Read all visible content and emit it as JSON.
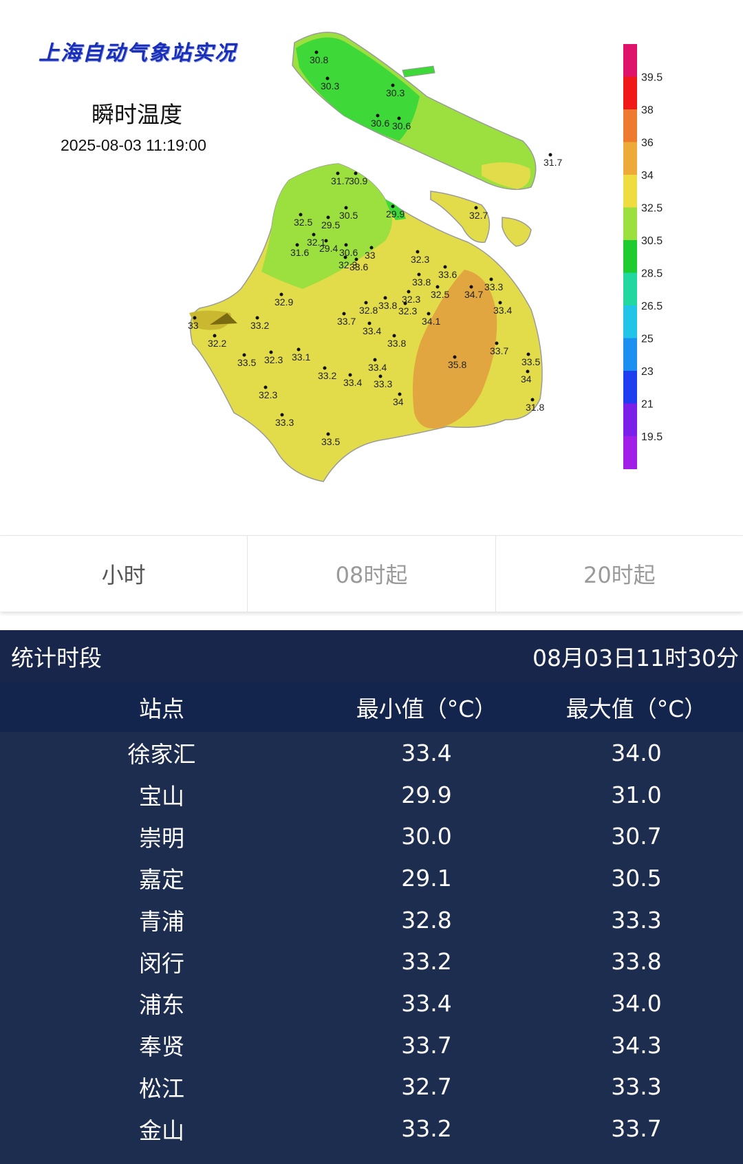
{
  "map": {
    "title": "上海自动气象站实况",
    "subtitle": "瞬时温度",
    "timestamp": "2025-08-03 11:19:00",
    "legend": {
      "labels": [
        "39.5",
        "38",
        "36",
        "34",
        "32.5",
        "30.5",
        "28.5",
        "26.5",
        "25",
        "23",
        "21",
        "19.5"
      ],
      "colors": [
        "#e0136a",
        "#f01818",
        "#ee7a30",
        "#eeaa38",
        "#eedc40",
        "#9ce040",
        "#1ecc30",
        "#22d8a0",
        "#22c4e8",
        "#1c90f0",
        "#1f3ef0",
        "#7a20e8",
        "#a020e8"
      ]
    },
    "stations": [
      "30.8",
      "30.3",
      "30.3",
      "30.6",
      "30.6",
      "31.7",
      "31.7",
      "30.9",
      "30.5",
      "29.9",
      "32.7",
      "32.5",
      "29.5",
      "32.1",
      "29.4",
      "31.6",
      "30.6",
      "33",
      "32.3",
      "33.6",
      "32.3",
      "33.6",
      "33.8",
      "32.5",
      "33.3",
      "32.3",
      "34.7",
      "32.9",
      "33.8",
      "32.8",
      "32.3",
      "33.4",
      "33",
      "33.2",
      "33.7",
      "34.1",
      "33.4",
      "32.2",
      "33.8",
      "32.3",
      "33.1",
      "33.7",
      "33.2",
      "33.4",
      "35.8",
      "33.5",
      "33.5",
      "33.4",
      "33.3",
      "34",
      "34",
      "32.3",
      "33.3",
      "31.8",
      "33.5"
    ]
  },
  "tabs": [
    {
      "label": "小时",
      "active": true
    },
    {
      "label": "08时起",
      "active": false
    },
    {
      "label": "20时起",
      "active": false
    }
  ],
  "stats": {
    "period_label": "统计时段",
    "period_value": "08月03日11时30分",
    "columns": [
      "站点",
      "最小值（°C）",
      "最大值（°C）"
    ],
    "rows": [
      [
        "徐家汇",
        "33.4",
        "34.0"
      ],
      [
        "宝山",
        "29.9",
        "31.0"
      ],
      [
        "崇明",
        "30.0",
        "30.7"
      ],
      [
        "嘉定",
        "29.1",
        "30.5"
      ],
      [
        "青浦",
        "32.8",
        "33.3"
      ],
      [
        "闵行",
        "33.2",
        "33.8"
      ],
      [
        "浦东",
        "33.4",
        "34.0"
      ],
      [
        "奉贤",
        "33.7",
        "34.3"
      ],
      [
        "松江",
        "32.7",
        "33.3"
      ],
      [
        "金山",
        "33.2",
        "33.7"
      ]
    ]
  }
}
